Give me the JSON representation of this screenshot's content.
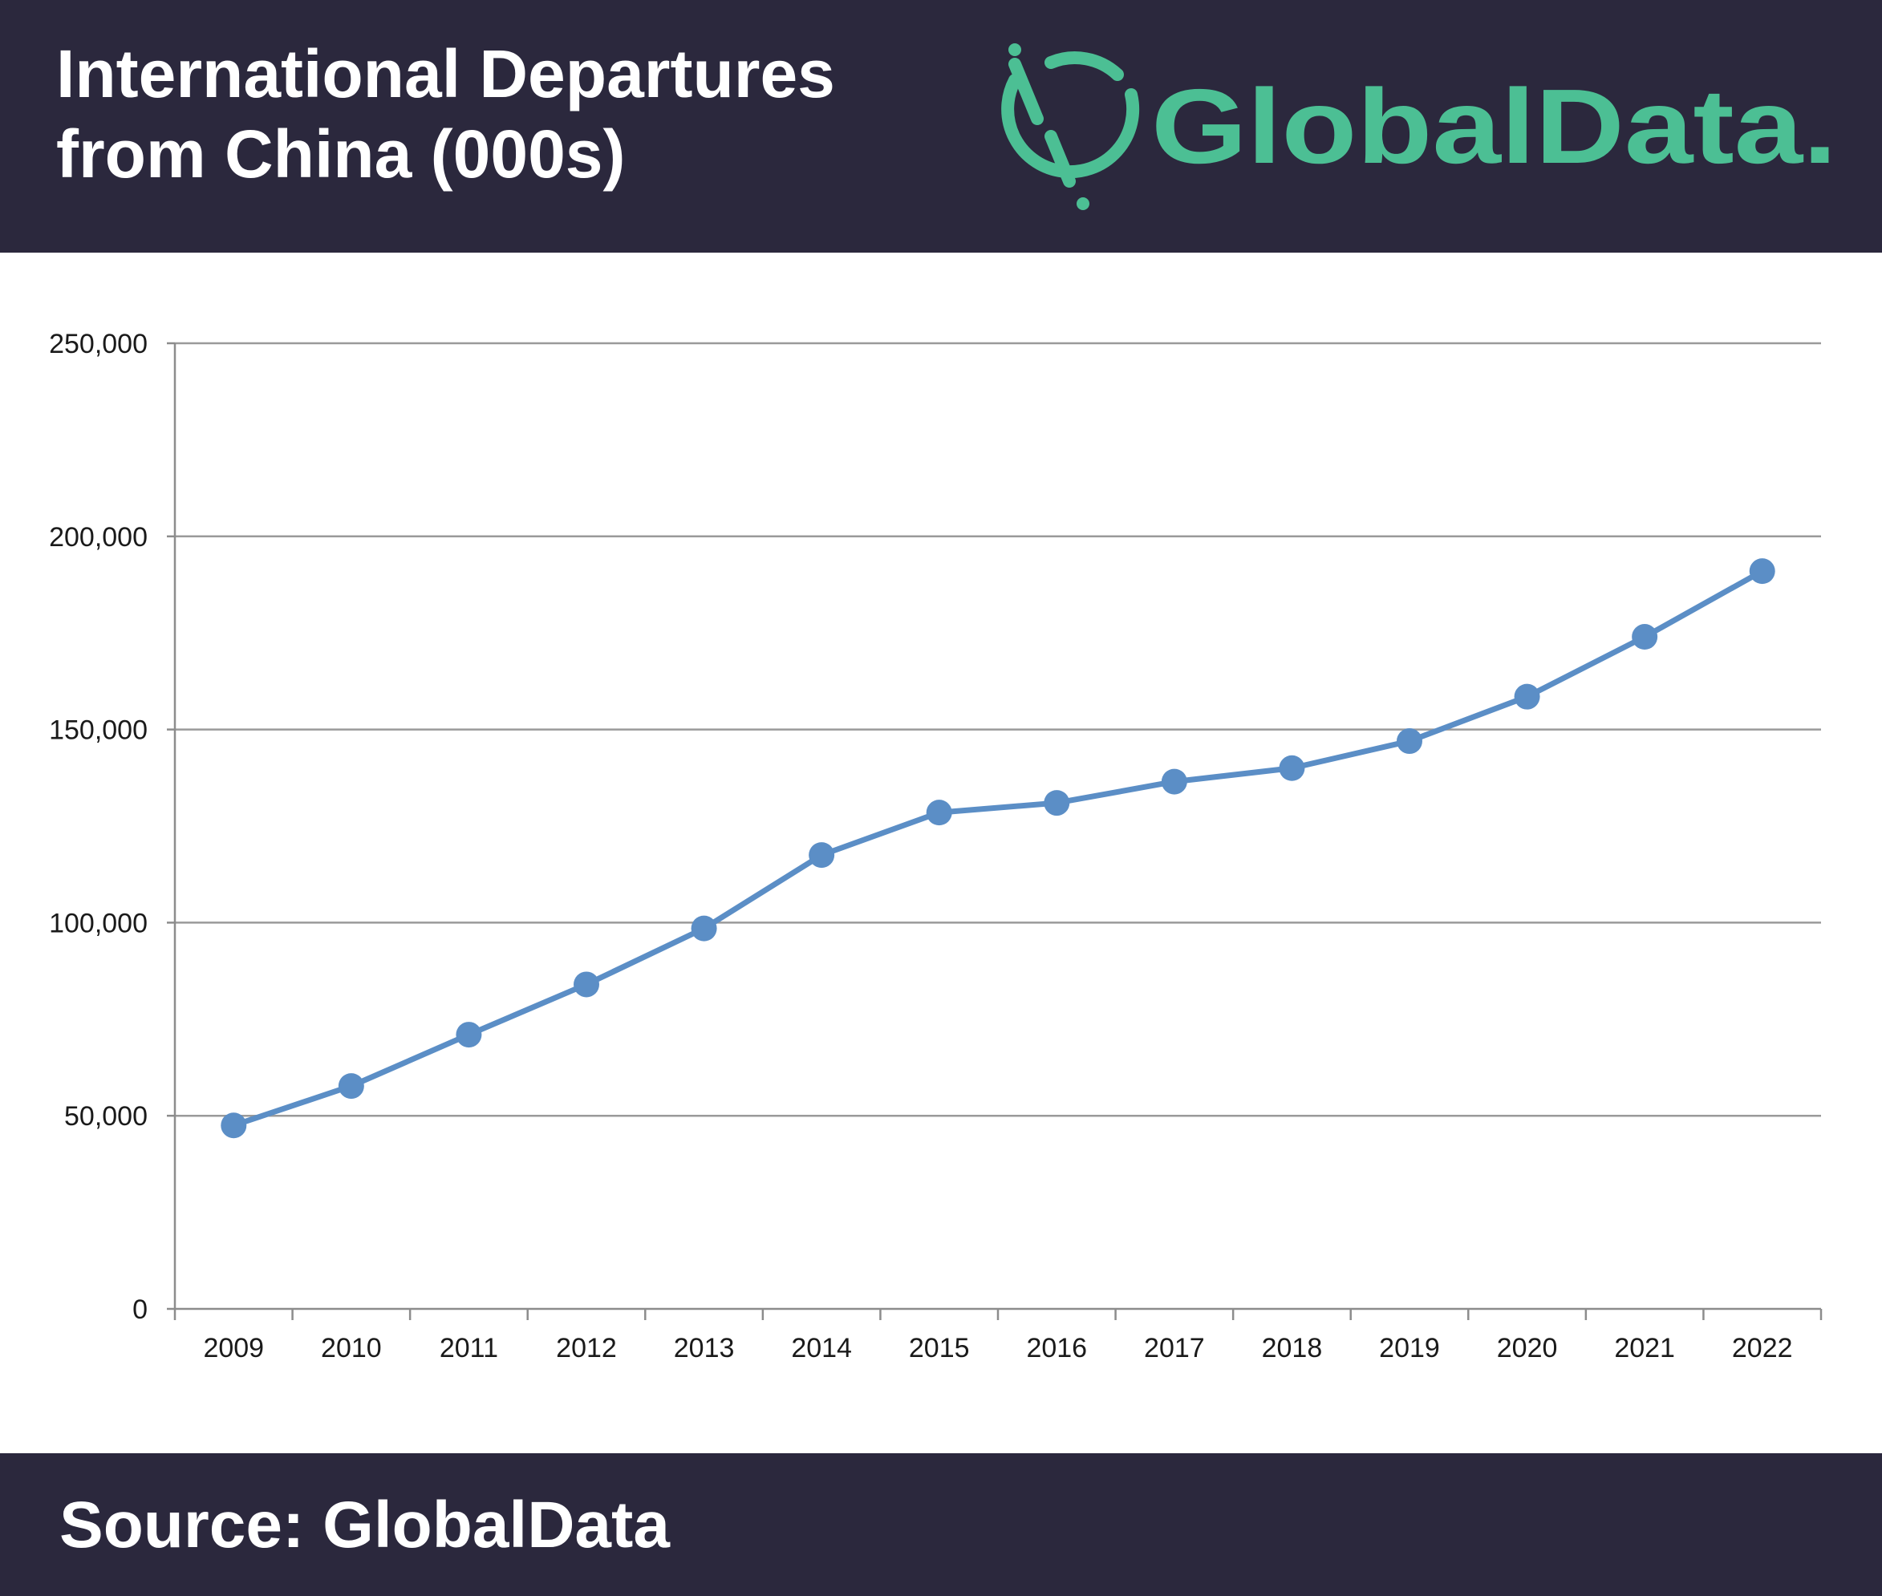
{
  "header": {
    "title_line1": "International Departures",
    "title_line2": "from China (000s)",
    "logo_text": "GlobalData."
  },
  "colors": {
    "header_bg": "#2b283d",
    "brand_green": "#4cbf94",
    "series_line": "#5b8ec6",
    "grid": "#9a9a9a",
    "axis": "#8c8c8c",
    "text_dark": "#1a1a1a"
  },
  "chart_data": {
    "type": "line",
    "title": "International Departures from China (000s)",
    "xlabel": "",
    "ylabel": "",
    "ylim": [
      0,
      250000
    ],
    "yticks": [
      0,
      50000,
      100000,
      150000,
      200000,
      250000
    ],
    "ytick_labels": [
      "0",
      "50,000",
      "100,000",
      "150,000",
      "200,000",
      "250,000"
    ],
    "grid": true,
    "legend": "none",
    "categories": [
      "2009",
      "2010",
      "2011",
      "2012",
      "2013",
      "2014",
      "2015",
      "2016",
      "2017",
      "2018",
      "2019",
      "2020",
      "2021",
      "2022"
    ],
    "series": [
      {
        "name": "International Departures from China (000s)",
        "values": [
          47500,
          57700,
          71000,
          84000,
          98500,
          117500,
          128500,
          131000,
          136500,
          140000,
          147000,
          158500,
          174000,
          191000
        ]
      }
    ]
  },
  "footer": {
    "source": "Source: GlobalData"
  }
}
